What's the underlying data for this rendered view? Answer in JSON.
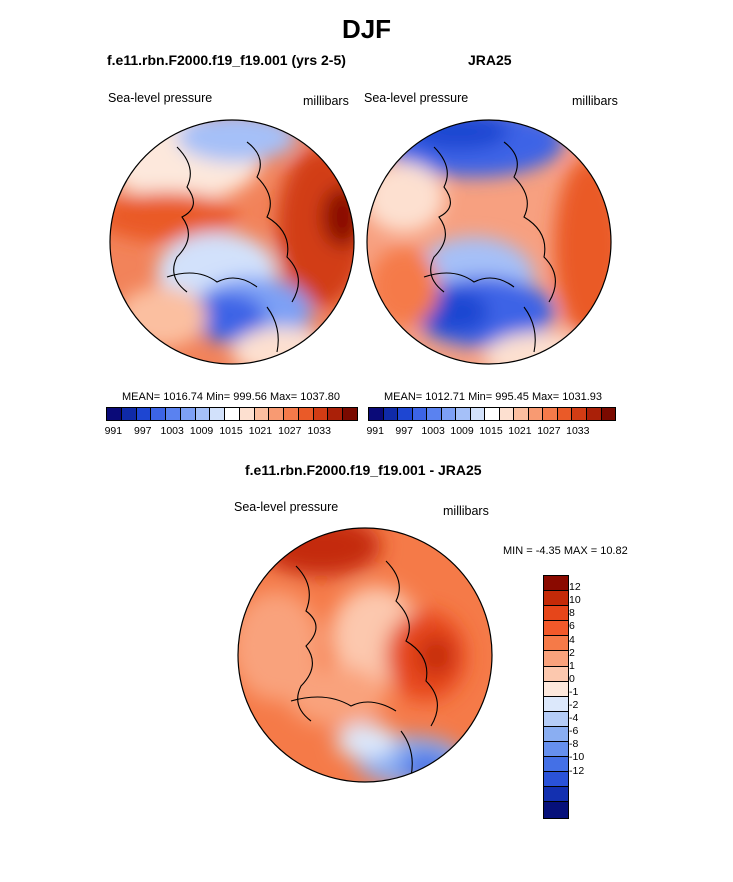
{
  "title": "DJF",
  "panel_left": {
    "case": "f.e11.rbn.F2000.f19_f19.001 (yrs 2-5)",
    "left_label": "Sea-level pressure",
    "right_label": "millibars",
    "stats": "MEAN= 1016.74  Min= 999.56  Max= 1037.80"
  },
  "panel_right": {
    "case": "JRA25",
    "left_label": "Sea-level pressure",
    "right_label": "millibars",
    "stats": "MEAN= 1012.71  Min= 995.45  Max= 1031.93"
  },
  "colorbar_top": {
    "colors": [
      "#0a0a78",
      "#0f2aa8",
      "#1e46d2",
      "#3c64e6",
      "#5a82f0",
      "#7da0f5",
      "#a5c0f8",
      "#d2e1fb",
      "#ffffff",
      "#fde0d0",
      "#fbbfa0",
      "#f89a72",
      "#f57a4a",
      "#ea5a28",
      "#d23c14",
      "#aa2008",
      "#7a0a00"
    ],
    "ticks": [
      "991",
      "997",
      "1003",
      "1009",
      "1015",
      "1021",
      "1027",
      "1033"
    ]
  },
  "panel_diff": {
    "title": "f.e11.rbn.F2000.f19_f19.001 - JRA25",
    "left_label": "Sea-level pressure",
    "right_label": "millibars",
    "minmax": "MIN =  -4.35 MAX =  10.82"
  },
  "colorbar_diff": {
    "colors": [
      "#8a0a00",
      "#c42a08",
      "#e6461a",
      "#f2592a",
      "#f57a48",
      "#f9a27c",
      "#fcc8ae",
      "#fde8dc",
      "#dce8fb",
      "#b5cdf7",
      "#8aaef2",
      "#6690ee",
      "#4470e6",
      "#2a52d8",
      "#1330b0",
      "#06107a"
    ],
    "ticks": [
      "12",
      "10",
      "8",
      "6",
      "4",
      "2",
      "1",
      "0",
      "-1",
      "-2",
      "-4",
      "-6",
      "-8",
      "-10",
      "-12"
    ]
  }
}
